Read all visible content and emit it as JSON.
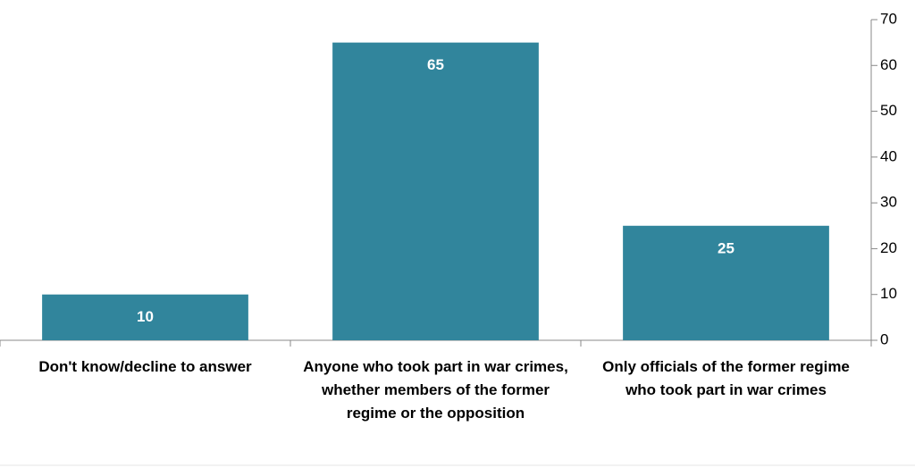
{
  "chart_data": {
    "type": "bar",
    "categories": [
      "Don't know/decline to answer",
      "Anyone who took part in war crimes, whether members of the former regime or the opposition",
      "Only officials of the former regime who took part in war crimes"
    ],
    "values": [
      10,
      65,
      25
    ],
    "color": "#31859c",
    "ylim": [
      0,
      70
    ],
    "yticks": [
      0,
      10,
      20,
      30,
      40,
      50,
      60,
      70
    ],
    "grid": false
  }
}
